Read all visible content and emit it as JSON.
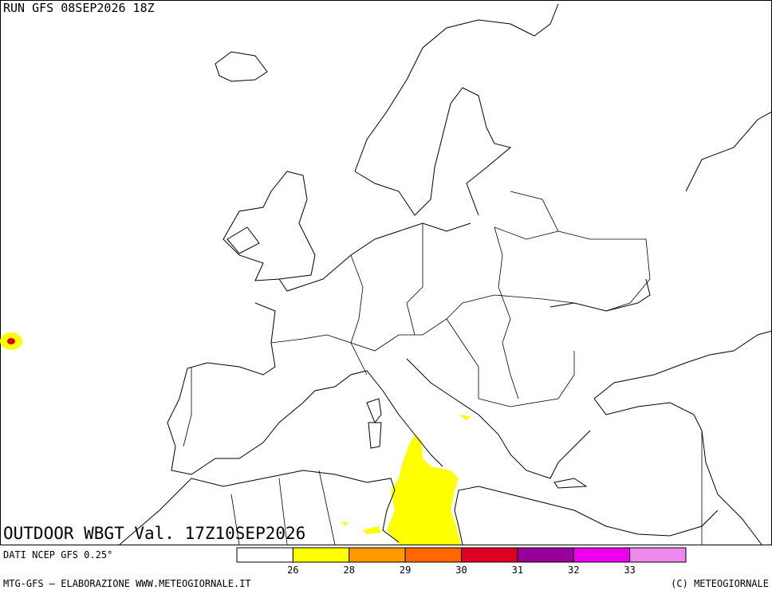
{
  "header": {
    "run": "RUN GFS 08SEP2026 18Z"
  },
  "map": {
    "title": "OUTDOOR WBGT Val. 17Z10SEP2026"
  },
  "footer": {
    "source": "DATI NCEP GFS 0.25°",
    "credit": "MTG-GFS — ELABORAZIONE WWW.METEOGIORNALE.IT",
    "copyright": "(C) METEOGIORNALE"
  },
  "legend": {
    "colors": [
      "#ffffff",
      "#ffff00",
      "#ff9900",
      "#ff6600",
      "#dd0022",
      "#990099",
      "#ee00ee",
      "#ee88ee"
    ],
    "ticks": [
      26,
      28,
      29,
      30,
      31,
      32,
      33
    ]
  }
}
